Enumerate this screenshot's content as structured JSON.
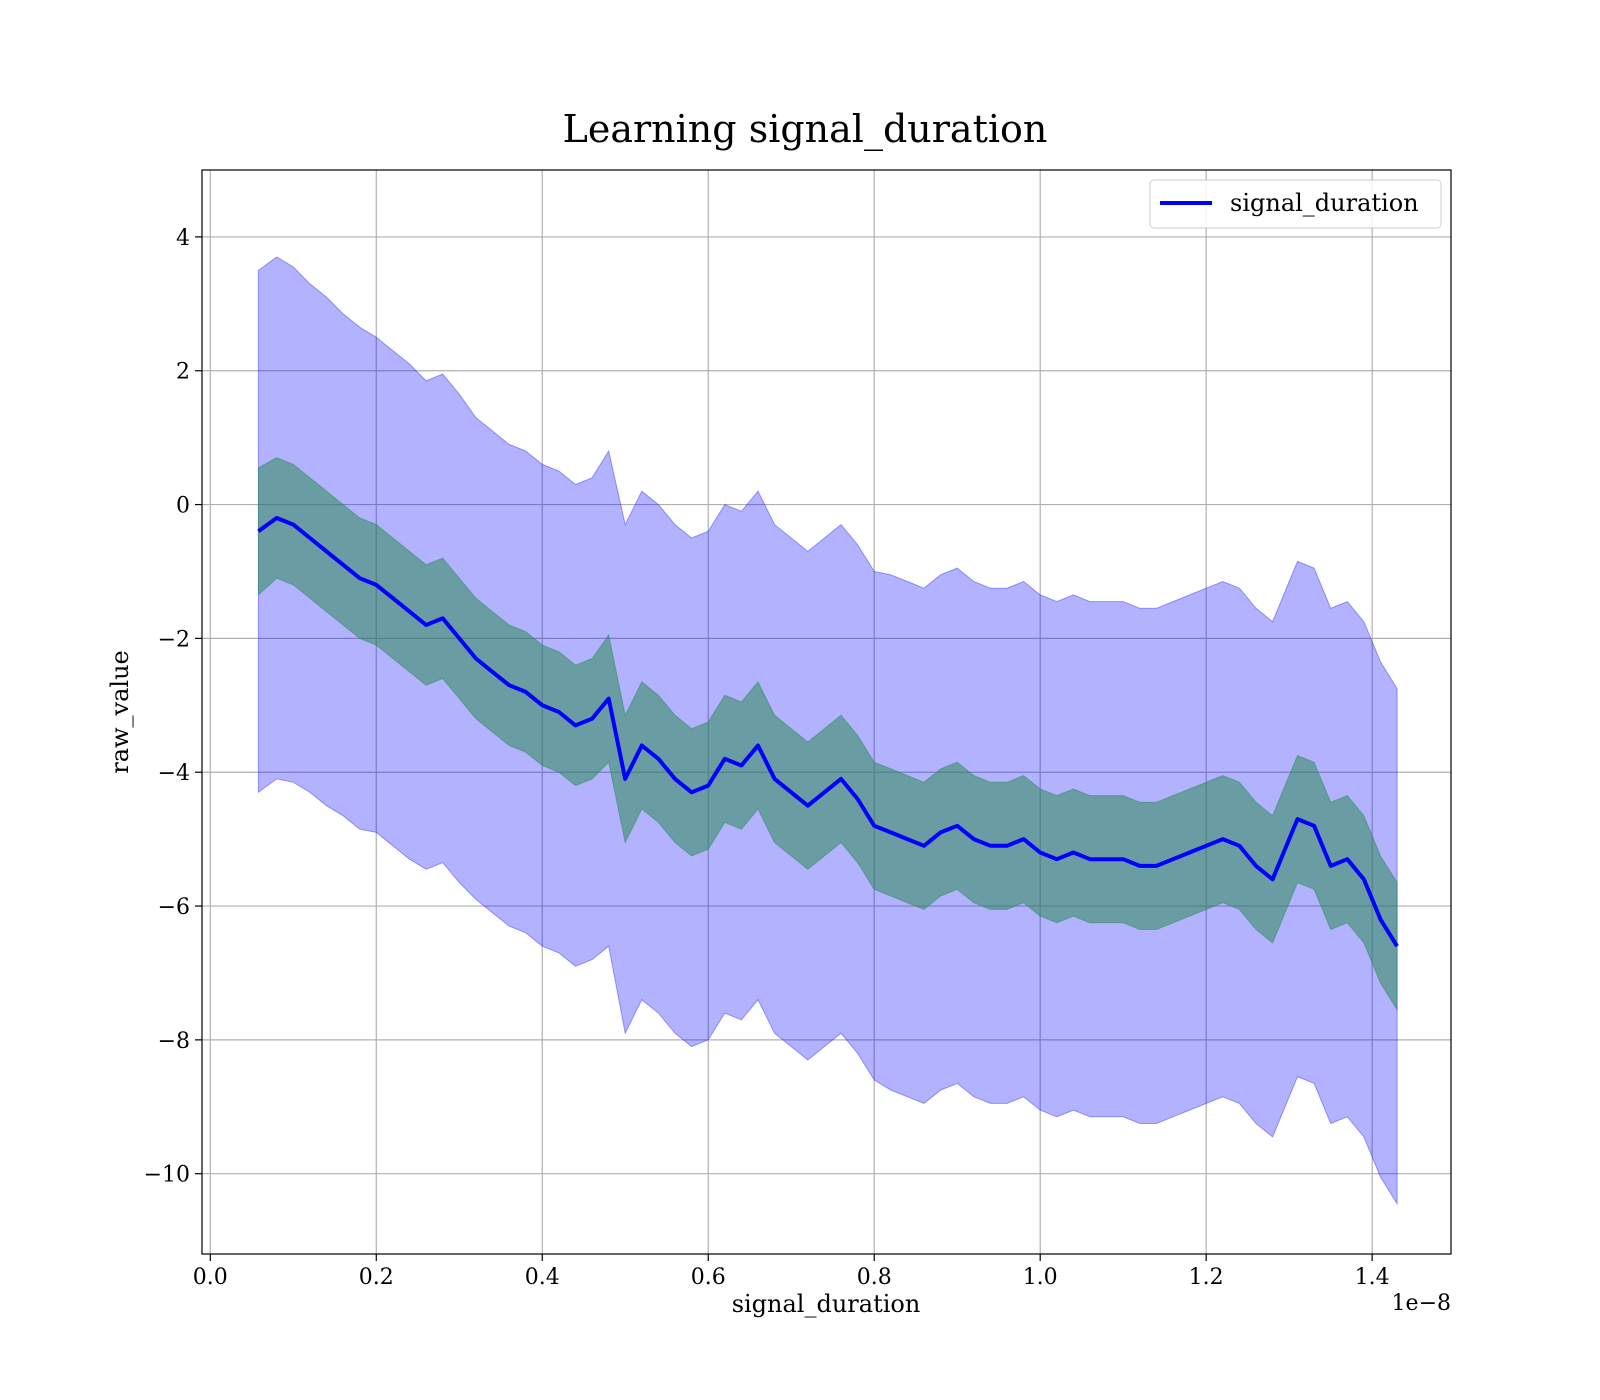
{
  "chart_data": {
    "type": "line",
    "title": "Learning signal_duration",
    "xlabel": "signal_duration",
    "ylabel": "raw_value",
    "x_offset_label": "1e−8",
    "xlim": [
      -0.01,
      1.495
    ],
    "ylim": [
      -11.2,
      5.0
    ],
    "x_ticks": [
      0.0,
      0.2,
      0.4,
      0.6,
      0.8,
      1.0,
      1.2,
      1.4
    ],
    "x_tick_labels": [
      "0.0",
      "0.2",
      "0.4",
      "0.6",
      "0.8",
      "1.0",
      "1.2",
      "1.4"
    ],
    "y_ticks": [
      4,
      2,
      0,
      -2,
      -4,
      -6,
      -8,
      -10
    ],
    "y_tick_labels": [
      "4",
      "2",
      "0",
      "−2",
      "−4",
      "−6",
      "−8",
      "−10"
    ],
    "grid": true,
    "legend": {
      "position": "top-right",
      "entries": [
        "signal_duration"
      ]
    },
    "colors": {
      "line": "#0000ff",
      "outer_band": "#0000ff",
      "inner_band": "#2e8b57"
    },
    "x_unit_scale": "1e-8",
    "series": [
      {
        "name": "signal_duration",
        "x": [
          0.058,
          0.08,
          0.1,
          0.12,
          0.14,
          0.16,
          0.18,
          0.2,
          0.22,
          0.24,
          0.26,
          0.28,
          0.3,
          0.32,
          0.34,
          0.36,
          0.38,
          0.4,
          0.42,
          0.44,
          0.46,
          0.48,
          0.5,
          0.52,
          0.54,
          0.56,
          0.58,
          0.6,
          0.62,
          0.64,
          0.66,
          0.68,
          0.7,
          0.72,
          0.74,
          0.76,
          0.78,
          0.8,
          0.82,
          0.84,
          0.86,
          0.88,
          0.9,
          0.92,
          0.94,
          0.96,
          0.98,
          1.0,
          1.02,
          1.04,
          1.06,
          1.08,
          1.1,
          1.12,
          1.14,
          1.16,
          1.18,
          1.2,
          1.22,
          1.24,
          1.26,
          1.28,
          1.3,
          1.31,
          1.33,
          1.35,
          1.37,
          1.39,
          1.41,
          1.43
        ],
        "y": [
          -0.4,
          -0.2,
          -0.3,
          -0.5,
          -0.7,
          -0.9,
          -1.1,
          -1.2,
          -1.4,
          -1.6,
          -1.8,
          -1.7,
          -2.0,
          -2.3,
          -2.5,
          -2.7,
          -2.8,
          -3.0,
          -3.1,
          -3.3,
          -3.2,
          -2.9,
          -4.1,
          -3.6,
          -3.8,
          -4.1,
          -4.3,
          -4.2,
          -3.8,
          -3.9,
          -3.6,
          -4.1,
          -4.3,
          -4.5,
          -4.3,
          -4.1,
          -4.4,
          -4.8,
          -4.9,
          -5.0,
          -5.1,
          -4.9,
          -4.8,
          -5.0,
          -5.1,
          -5.1,
          -5.0,
          -5.2,
          -5.3,
          -5.2,
          -5.3,
          -5.3,
          -5.3,
          -5.4,
          -5.4,
          -5.3,
          -5.2,
          -5.1,
          -5.0,
          -5.1,
          -5.4,
          -5.6,
          -5.0,
          -4.7,
          -4.8,
          -5.4,
          -5.3,
          -5.6,
          -6.2,
          -6.6
        ],
        "std": [
          3.9,
          3.9,
          3.85,
          3.8,
          3.8,
          3.75,
          3.75,
          3.7,
          3.7,
          3.7,
          3.65,
          3.65,
          3.65,
          3.6,
          3.6,
          3.6,
          3.6,
          3.6,
          3.6,
          3.6,
          3.6,
          3.7,
          3.8,
          3.8,
          3.8,
          3.8,
          3.8,
          3.8,
          3.8,
          3.8,
          3.8,
          3.8,
          3.8,
          3.8,
          3.8,
          3.8,
          3.8,
          3.8,
          3.85,
          3.85,
          3.85,
          3.85,
          3.85,
          3.85,
          3.85,
          3.85,
          3.85,
          3.85,
          3.85,
          3.85,
          3.85,
          3.85,
          3.85,
          3.85,
          3.85,
          3.85,
          3.85,
          3.85,
          3.85,
          3.85,
          3.85,
          3.85,
          3.85,
          3.85,
          3.85,
          3.85,
          3.85,
          3.85,
          3.85,
          3.85
        ],
        "inner_std": [
          0.95,
          0.9,
          0.9,
          0.9,
          0.9,
          0.9,
          0.9,
          0.9,
          0.9,
          0.9,
          0.9,
          0.9,
          0.9,
          0.9,
          0.9,
          0.9,
          0.9,
          0.9,
          0.9,
          0.9,
          0.9,
          0.95,
          0.95,
          0.95,
          0.95,
          0.95,
          0.95,
          0.95,
          0.95,
          0.95,
          0.95,
          0.95,
          0.95,
          0.95,
          0.95,
          0.95,
          0.95,
          0.95,
          0.95,
          0.95,
          0.95,
          0.95,
          0.95,
          0.95,
          0.95,
          0.95,
          0.95,
          0.95,
          0.95,
          0.95,
          0.95,
          0.95,
          0.95,
          0.95,
          0.95,
          0.95,
          0.95,
          0.95,
          0.95,
          0.95,
          0.95,
          0.95,
          0.95,
          0.95,
          0.95,
          0.95,
          0.95,
          0.95,
          0.95,
          0.95
        ]
      }
    ]
  }
}
